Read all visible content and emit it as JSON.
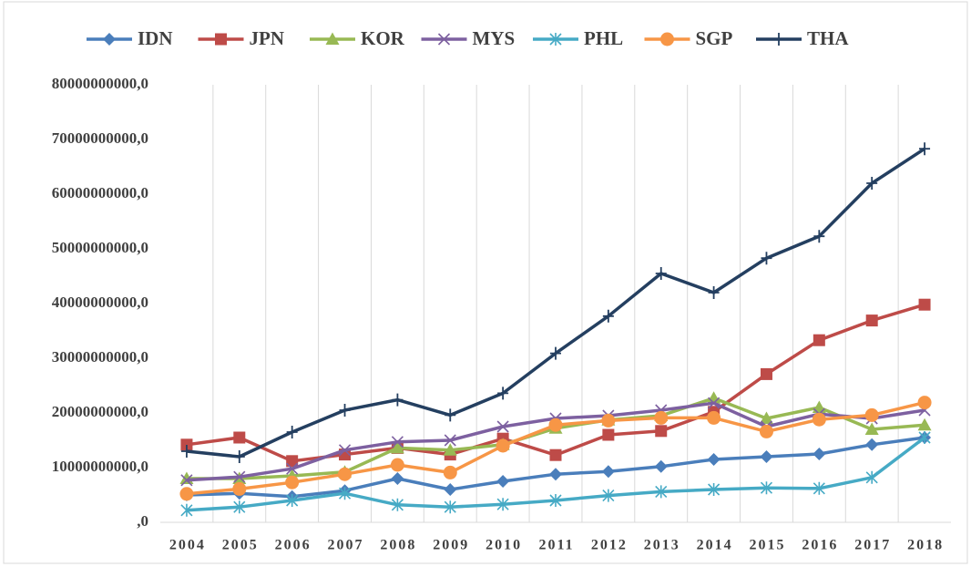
{
  "chart_data": {
    "type": "line",
    "categories": [
      "2004",
      "2005",
      "2006",
      "2007",
      "2008",
      "2009",
      "2010",
      "2011",
      "2012",
      "2013",
      "2014",
      "2015",
      "2016",
      "2017",
      "2018"
    ],
    "series": [
      {
        "name": "IDN",
        "color": "#4a7ebb",
        "marker": "diamond",
        "values": [
          5000000000,
          5300000000,
          4700000000,
          5800000000,
          8000000000,
          6000000000,
          7500000000,
          8800000000,
          9300000000,
          10200000000,
          11500000000,
          12000000000,
          12500000000,
          14200000000,
          15500000000
        ]
      },
      {
        "name": "JPN",
        "color": "#be4b48",
        "marker": "square",
        "values": [
          14200000000,
          15500000000,
          11200000000,
          12400000000,
          13600000000,
          12400000000,
          15300000000,
          12300000000,
          16000000000,
          16700000000,
          20200000000,
          27100000000,
          33300000000,
          36900000000,
          39800000000
        ]
      },
      {
        "name": "KOR",
        "color": "#98b954",
        "marker": "triangle",
        "values": [
          8000000000,
          8000000000,
          8500000000,
          9200000000,
          13600000000,
          13200000000,
          14200000000,
          17200000000,
          18700000000,
          19500000000,
          22700000000,
          19000000000,
          21000000000,
          17000000000,
          17800000000
        ]
      },
      {
        "name": "MYS",
        "color": "#7d60a0",
        "marker": "x",
        "values": [
          7700000000,
          8300000000,
          9800000000,
          13200000000,
          14700000000,
          15000000000,
          17500000000,
          19000000000,
          19500000000,
          20500000000,
          21800000000,
          17500000000,
          19800000000,
          19000000000,
          20500000000
        ]
      },
      {
        "name": "PHL",
        "color": "#46aac5",
        "marker": "star",
        "values": [
          2200000000,
          2800000000,
          4000000000,
          5300000000,
          3200000000,
          2800000000,
          3300000000,
          4000000000,
          4900000000,
          5600000000,
          6000000000,
          6300000000,
          6200000000,
          8200000000,
          15500000000
        ]
      },
      {
        "name": "SGP",
        "color": "#f79646",
        "marker": "circle",
        "values": [
          5200000000,
          6100000000,
          7300000000,
          8800000000,
          10500000000,
          9100000000,
          14000000000,
          17800000000,
          18600000000,
          19100000000,
          19100000000,
          16600000000,
          18800000000,
          19600000000,
          21900000000
        ]
      },
      {
        "name": "THA",
        "color": "#243f60",
        "marker": "plus",
        "values": [
          13000000000,
          12000000000,
          16500000000,
          20500000000,
          22400000000,
          19600000000,
          23600000000,
          30900000000,
          37700000000,
          45500000000,
          42000000000,
          48300000000,
          52300000000,
          62000000000,
          68300000000
        ]
      }
    ],
    "ylim": [
      0,
      80000000000
    ],
    "yticks": [
      {
        "value": 0,
        "label": ",0"
      },
      {
        "value": 10000000000,
        "label": "10000000000,0"
      },
      {
        "value": 20000000000,
        "label": "20000000000,0"
      },
      {
        "value": 30000000000,
        "label": "30000000000,0"
      },
      {
        "value": 40000000000,
        "label": "40000000000,0"
      },
      {
        "value": 50000000000,
        "label": "50000000000,0"
      },
      {
        "value": 60000000000,
        "label": "60000000000,0"
      },
      {
        "value": 70000000000,
        "label": "70000000000,0"
      },
      {
        "value": 80000000000,
        "label": "80000000000,0"
      }
    ],
    "grid": true,
    "legend": "top"
  }
}
